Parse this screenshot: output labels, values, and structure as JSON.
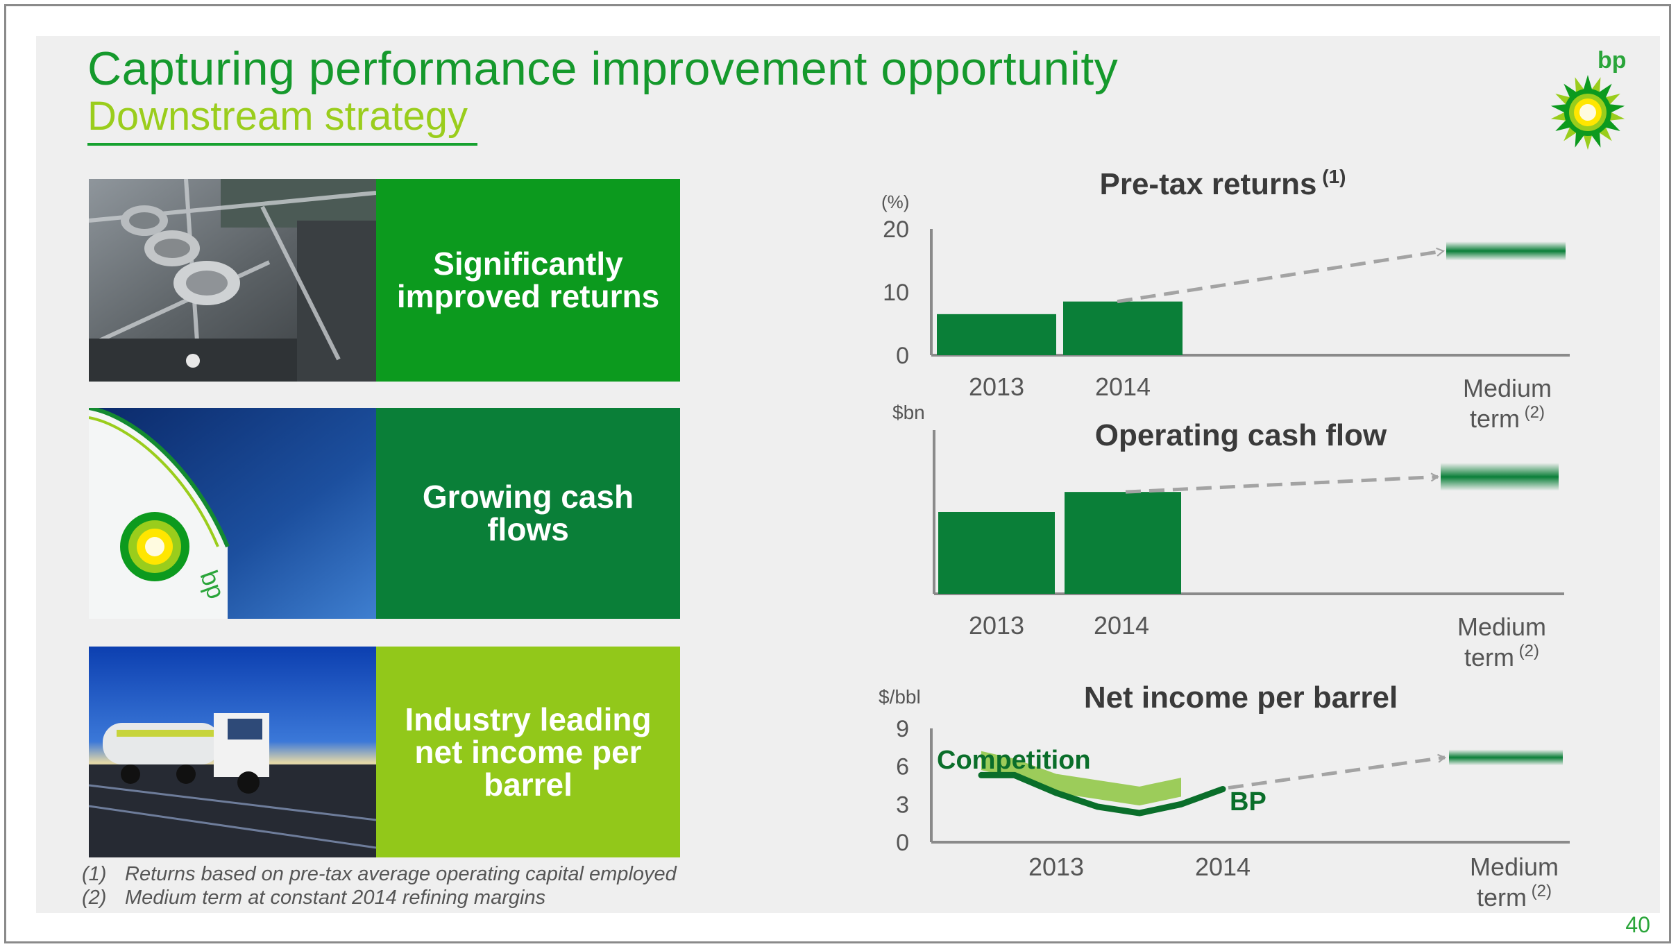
{
  "slide": {
    "title": "Capturing performance improvement opportunity",
    "subtitle": "Downstream strategy",
    "page_number": "40",
    "logo_text": "bp"
  },
  "panels": [
    {
      "label": "Significantly improved returns",
      "color": "#0c9a1e",
      "image": "refinery-plant-photo"
    },
    {
      "label": "Growing cash flows",
      "color": "#0a7f38",
      "image": "bp-storage-tank-photo"
    },
    {
      "label": "Industry leading net income per barrel",
      "color": "#92c81a",
      "image": "fuel-tanker-truck-photo"
    }
  ],
  "footnotes": [
    {
      "num": "(1)",
      "text": "Returns based on pre-tax average operating capital employed"
    },
    {
      "num": "(2)",
      "text": "Medium term at constant 2014 refining margins"
    }
  ],
  "chart_data": [
    {
      "type": "bar",
      "title": "Pre-tax returns",
      "title_sup": "(1)",
      "unit": "(%)",
      "categories": [
        "2013",
        "2014",
        "Medium term"
      ],
      "category_sup": [
        "",
        "",
        "(2)"
      ],
      "values": [
        6.5,
        8.5,
        null
      ],
      "target_band": [
        15,
        18
      ],
      "yticks": [
        0,
        10,
        20
      ],
      "ylim": [
        0,
        20
      ],
      "bar_color": "#0a7f38",
      "arrow": "dashed trend arrow from 2014 to medium term"
    },
    {
      "type": "bar",
      "title": "Operating cash flow",
      "unit": "$bn",
      "categories": [
        "2013",
        "2014",
        "Medium term"
      ],
      "category_sup": [
        "",
        "",
        "(2)"
      ],
      "values": [
        4.5,
        5.6,
        null
      ],
      "target_band": [
        6.5,
        7.2
      ],
      "ylim": [
        0,
        9
      ],
      "yticks": [],
      "bar_color": "#0a7f38",
      "arrow": "dashed trend arrow from 2014 to medium term"
    },
    {
      "type": "line",
      "title": "Net income per barrel",
      "unit": "$/bbl",
      "yticks": [
        0,
        3,
        6,
        9
      ],
      "ylim": [
        0,
        9
      ],
      "xticks": [
        "2013",
        "2014",
        "Medium term"
      ],
      "xtick_sup": [
        "",
        "",
        "(2)"
      ],
      "target_band": [
        6.4,
        7.0
      ],
      "series": [
        {
          "name": "Competition",
          "color": "#8dc63f",
          "x": [
            2012.55,
            2012.75,
            2013.0,
            2013.25,
            2013.5,
            2013.75
          ],
          "y": [
            6.3,
            5.7,
            4.5,
            4.0,
            3.5,
            4.2
          ]
        },
        {
          "name": "BP",
          "color": "#0a6e2a",
          "x": [
            2012.55,
            2012.75,
            2013.0,
            2013.25,
            2013.5,
            2013.75,
            2014.0
          ],
          "y": [
            5.3,
            5.3,
            3.9,
            2.8,
            2.3,
            3.0,
            4.2
          ]
        }
      ]
    }
  ]
}
